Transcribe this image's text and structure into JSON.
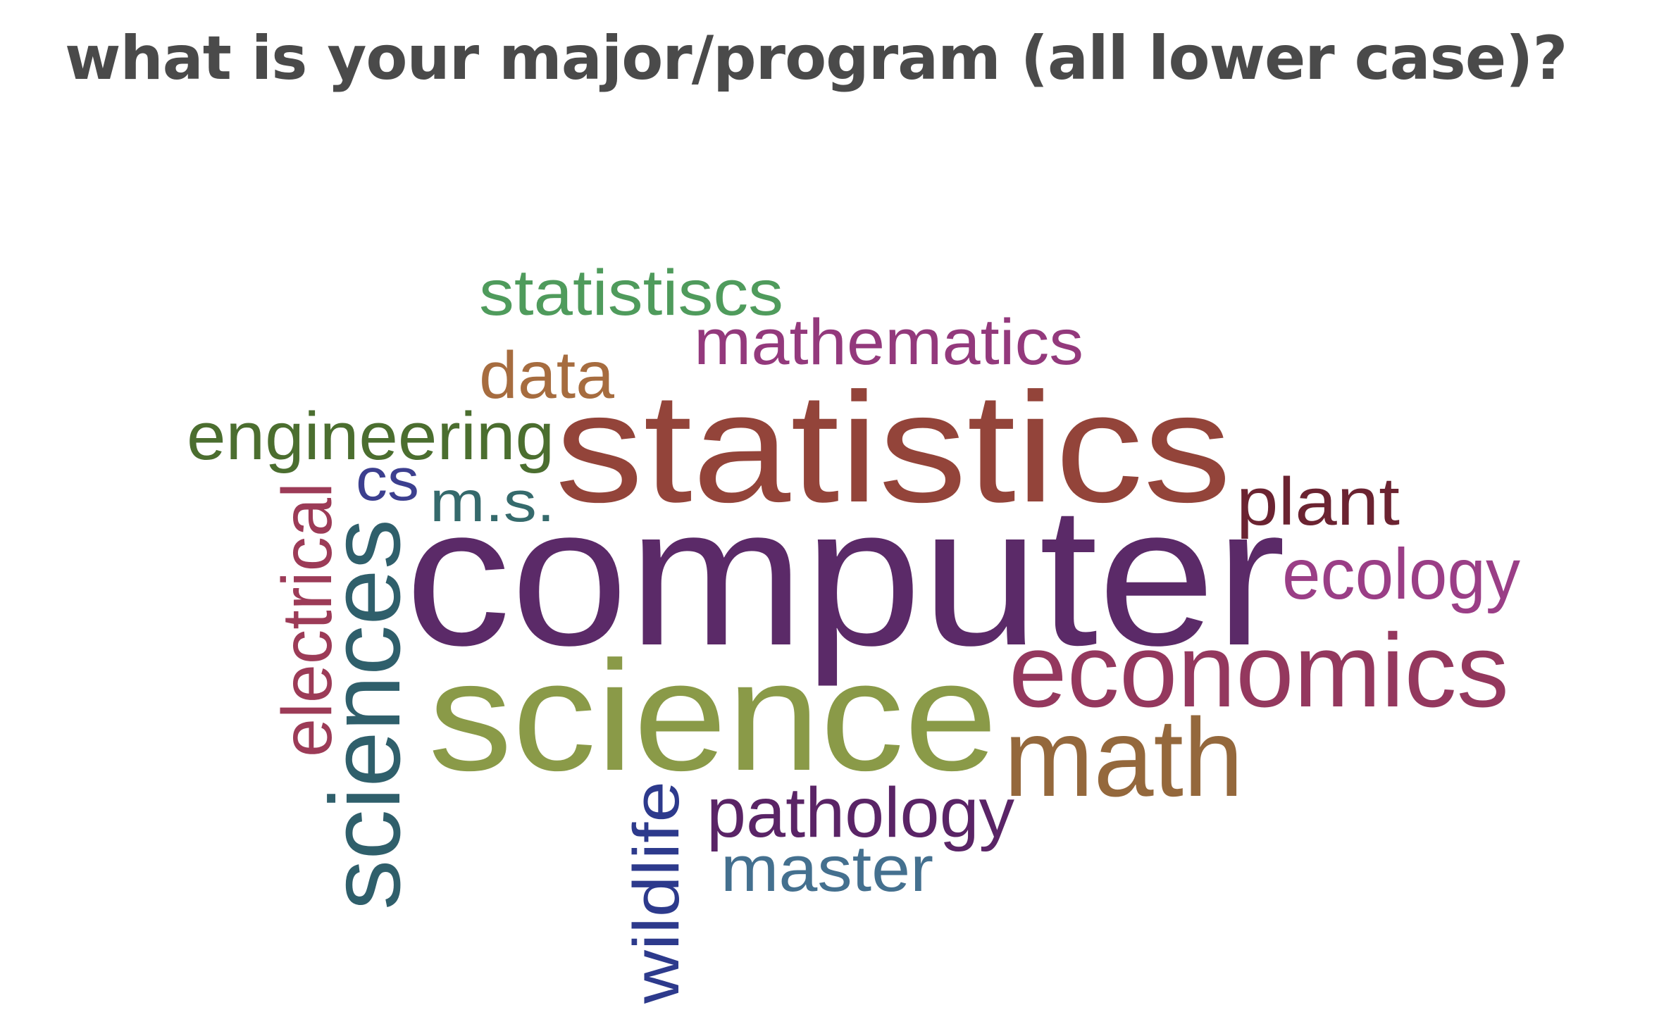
{
  "question": {
    "title": "what is your major/program (all lower case)?"
  },
  "words": [
    {
      "text": "statistiscs",
      "color": "#4f9b5c"
    },
    {
      "text": "mathematics",
      "color": "#93397c"
    },
    {
      "text": "data",
      "color": "#a66c3f"
    },
    {
      "text": "engineering",
      "color": "#4b6e2f"
    },
    {
      "text": "statistics",
      "color": "#93443a"
    },
    {
      "text": "cs",
      "color": "#3c3f8f"
    },
    {
      "text": "m.s.",
      "color": "#356a6c"
    },
    {
      "text": "plant",
      "color": "#6b2331"
    },
    {
      "text": "electrical",
      "color": "#9c3b57"
    },
    {
      "text": "sciences",
      "color": "#2f5f6b"
    },
    {
      "text": "computer",
      "color": "#5b2a68"
    },
    {
      "text": "ecology",
      "color": "#9a3e86"
    },
    {
      "text": "science",
      "color": "#8a9a48"
    },
    {
      "text": "economics",
      "color": "#94385e"
    },
    {
      "text": "math",
      "color": "#94683c"
    },
    {
      "text": "wildlife",
      "color": "#2d3a8c"
    },
    {
      "text": "pathology",
      "color": "#5a2466"
    },
    {
      "text": "master",
      "color": "#44708f"
    }
  ]
}
